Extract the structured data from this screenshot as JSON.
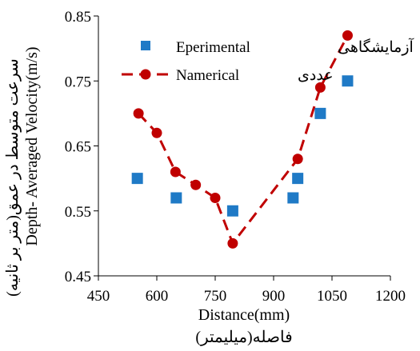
{
  "chart_data": {
    "type": "scatter",
    "xlabel": "Distance(mm)",
    "xlabel_secondary": "فاصله(میلیمتر)",
    "ylabel": "Depth- Averaged Velocity(m/s)",
    "ylabel_secondary": "سرعت متوسط در عمق(متر بر ثانیه)",
    "xlim": [
      450,
      1200
    ],
    "ylim": [
      0.45,
      0.85
    ],
    "x_ticks": [
      "450",
      "600",
      "750",
      "900",
      "1050",
      "1200"
    ],
    "y_ticks": [
      "0.45",
      "0.55",
      "0.65",
      "0.75",
      "0.85"
    ],
    "legend_position": "top-center",
    "grid": false,
    "series": [
      {
        "name": "Eperimental",
        "name_secondary": "آزمایشگاهی",
        "marker": "square",
        "line": "none",
        "color": "#1f7ac6",
        "points": [
          [
            550,
            0.6
          ],
          [
            650,
            0.57
          ],
          [
            795,
            0.55
          ],
          [
            950,
            0.57
          ],
          [
            962,
            0.6
          ],
          [
            1020,
            0.7
          ],
          [
            1090,
            0.75
          ]
        ]
      },
      {
        "name": "Namerical",
        "name_secondary": "عددی",
        "marker": "circle",
        "line": "dashed",
        "color": "#c00000",
        "points": [
          [
            553,
            0.7
          ],
          [
            600,
            0.67
          ],
          [
            648,
            0.61
          ],
          [
            700,
            0.59
          ],
          [
            750,
            0.57
          ],
          [
            795,
            0.5
          ],
          [
            962,
            0.63
          ],
          [
            1020,
            0.74
          ],
          [
            1090,
            0.82
          ]
        ]
      }
    ]
  }
}
